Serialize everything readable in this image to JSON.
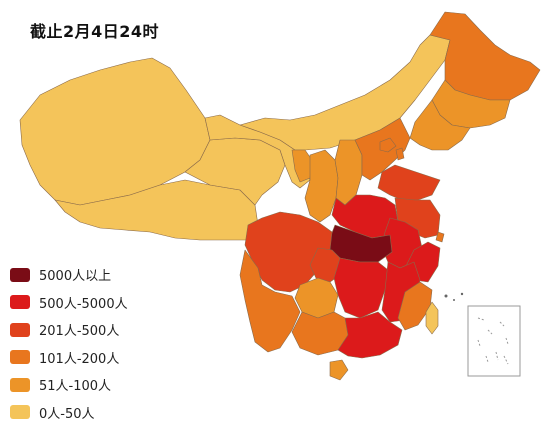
{
  "title": "截止2月4日24时",
  "palette": {
    "c5000": "#7a0c16",
    "c500": "#dc1a1b",
    "c201": "#e0421c",
    "c101": "#e8761e",
    "c51": "#ec9428",
    "c0": "#f4c45a",
    "border": "#8a6a4a",
    "inset": "#9a9a9a"
  },
  "legend": [
    {
      "label": "5000人以上",
      "color": "#7a0c16"
    },
    {
      "label": "500人-5000人",
      "color": "#dc1a1b"
    },
    {
      "label": "201人-500人",
      "color": "#e0421c"
    },
    {
      "label": "101人-200人",
      "color": "#e8761e"
    },
    {
      "label": "51人-100人",
      "color": "#ec9428"
    },
    {
      "label": "0人-50人",
      "color": "#f4c45a"
    }
  ]
}
